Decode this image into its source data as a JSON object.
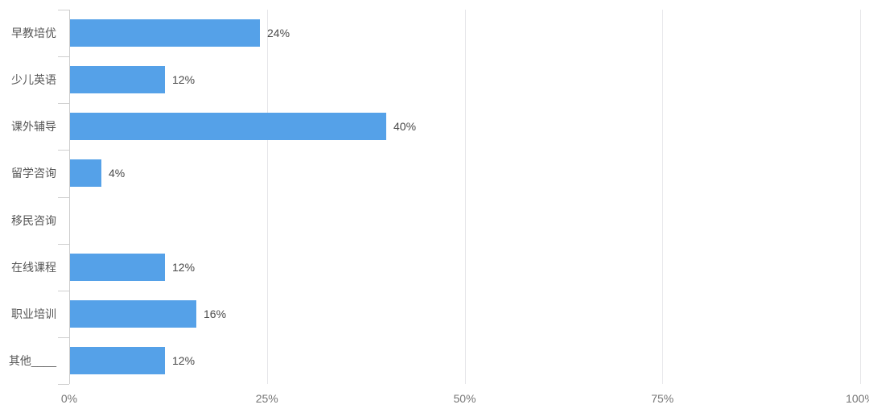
{
  "chart_data": {
    "type": "bar",
    "orientation": "horizontal",
    "title": "",
    "xlabel": "",
    "ylabel": "",
    "categories": [
      "早教培优",
      "少儿英语",
      "课外辅导",
      "留学咨询",
      "移民咨询",
      "在线课程",
      "职业培训",
      "其他____"
    ],
    "values": [
      24,
      12,
      40,
      4,
      0,
      12,
      16,
      12
    ],
    "value_labels": [
      "24%",
      "12%",
      "40%",
      "4%",
      "",
      "12%",
      "16%",
      "12%"
    ],
    "value_suffix": "%",
    "xlim": [
      0,
      100
    ],
    "x_tick_values": [
      0,
      25,
      50,
      75,
      100
    ],
    "x_tick_labels": [
      "0%",
      "25%",
      "50%",
      "75%",
      "100%"
    ],
    "grid": true,
    "legend": null,
    "bar_color": "#55a1e8"
  },
  "colors": {
    "bar": "#55a1e8",
    "gridline": "#e7e7ea",
    "axis": "#cfcfcf",
    "category_label": "#565656",
    "value_label": "#4a4a4a",
    "tick_label": "#757575",
    "background": "#ffffff"
  }
}
